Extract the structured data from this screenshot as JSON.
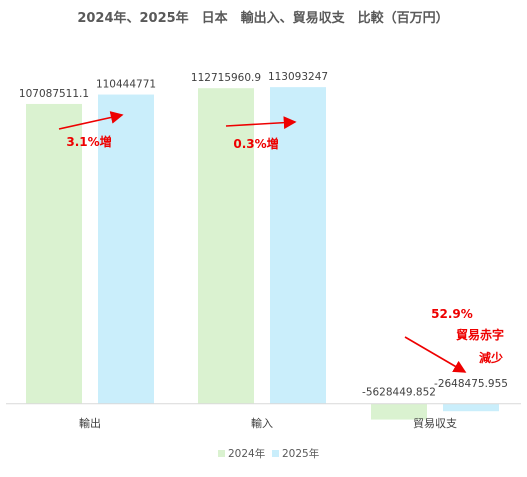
{
  "chart_data": {
    "type": "bar",
    "title": "2024年、2025年　日本　輸出入、貿易収支　比較（百万円）",
    "categories": [
      "輸出",
      "輸入",
      "貿易収支"
    ],
    "series": [
      {
        "name": "2024年",
        "color": "#daf2d0",
        "values": [
          107087511.1,
          112715960.9,
          -5628449.852
        ],
        "labels": [
          "107087511.1",
          "112715960.9",
          "-5628449.852"
        ]
      },
      {
        "name": "2025年",
        "color": "#caeefb",
        "values": [
          110444771,
          113093247,
          -2648475.955
        ],
        "labels": [
          "110444771",
          "113093247",
          "-2648475.955"
        ]
      }
    ],
    "ylim": [
      -9000000,
      131000000
    ],
    "grid": false,
    "legend_position": "bottom",
    "annotations": [
      {
        "text": "3.1%増",
        "color": "#ee0000"
      },
      {
        "text": "0.3%増",
        "color": "#ee0000"
      },
      {
        "text": "52.9%",
        "color": "#ee0000"
      },
      {
        "text": "貿易赤字",
        "color": "#ee0000"
      },
      {
        "text": "減少",
        "color": "#ee0000"
      }
    ]
  }
}
